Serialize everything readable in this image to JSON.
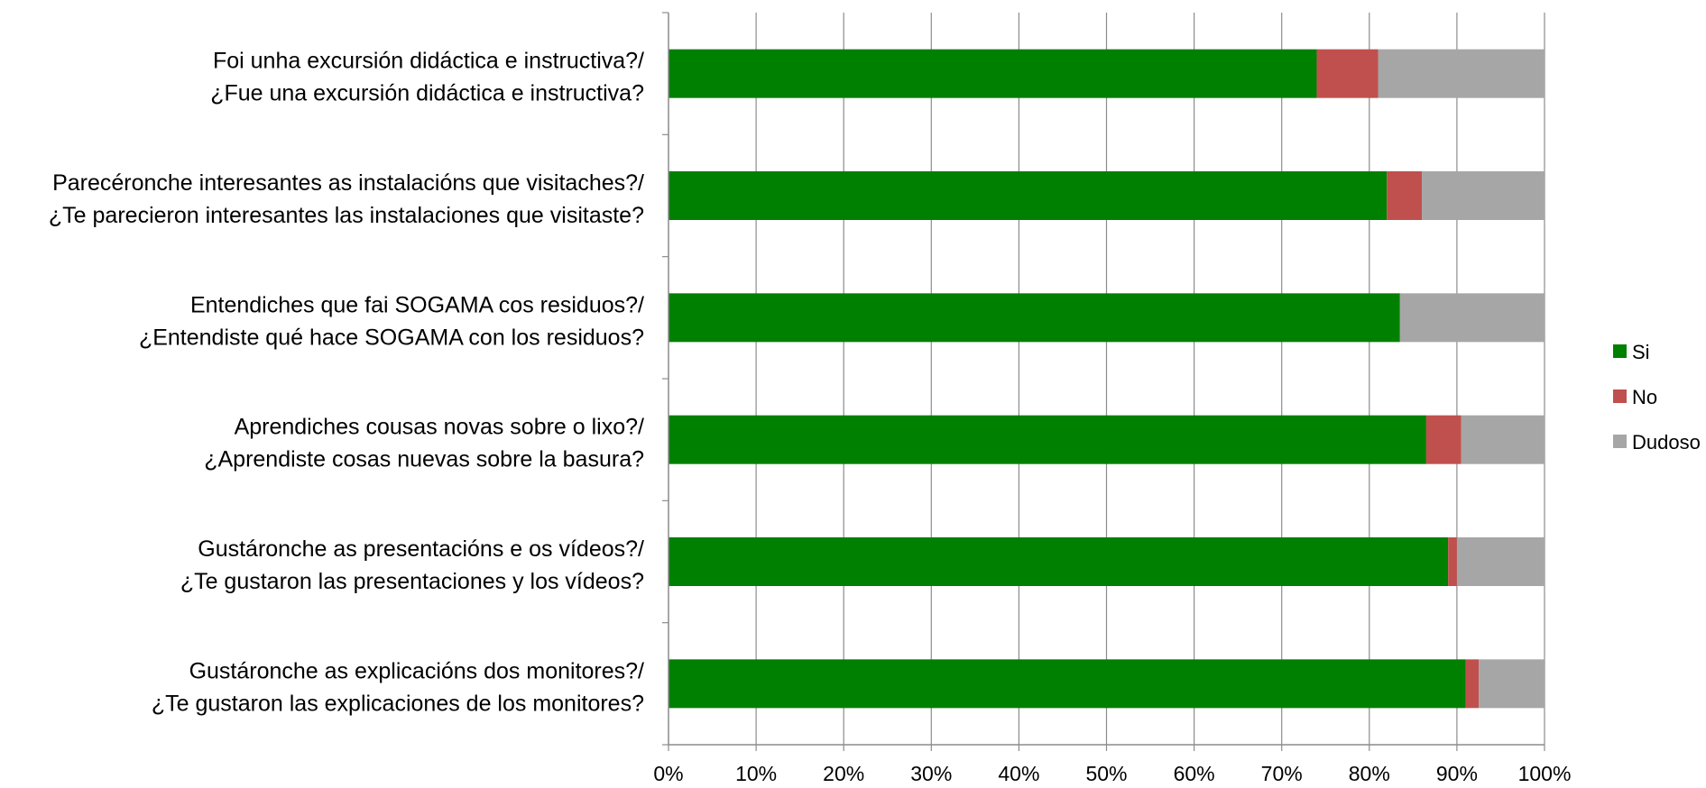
{
  "chart_data": {
    "type": "bar",
    "orientation": "horizontal",
    "stacked": true,
    "percent_scale": true,
    "categories": [
      [
        "Foi unha excursión didáctica e instructiva?/",
        "¿Fue una excursión didáctica e instructiva?"
      ],
      [
        "Parecéronche interesantes as instalacións que visitaches?/",
        "¿Te parecieron interesantes las instalaciones que visitaste?"
      ],
      [
        "Entendiches que fai SOGAMA cos residuos?/",
        "¿Entendiste qué hace SOGAMA con los residuos?"
      ],
      [
        "Aprendiches cousas novas sobre o lixo?/",
        "¿Aprendiste cosas nuevas sobre la basura?"
      ],
      [
        "Gustáronche as presentacións e os vídeos?/",
        "¿Te gustaron las presentaciones y los vídeos?"
      ],
      [
        "Gustáronche as explicacións dos monitores?/",
        "¿Te gustaron las explicaciones de los monitores?"
      ]
    ],
    "series": [
      {
        "name": "Si",
        "color": "#008000",
        "values": [
          74,
          82,
          83.5,
          86.5,
          89,
          91
        ]
      },
      {
        "name": "No",
        "color": "#C0504D",
        "values": [
          7,
          4,
          0,
          4,
          1,
          1.5
        ]
      },
      {
        "name": "Dudoso",
        "color": "#A6A6A6",
        "values": [
          19,
          14,
          16.5,
          9.5,
          10,
          7.5
        ]
      }
    ],
    "xlim": [
      0,
      100
    ],
    "x_ticks": [
      "0%",
      "10%",
      "20%",
      "30%",
      "40%",
      "50%",
      "60%",
      "70%",
      "80%",
      "90%",
      "100%"
    ],
    "grid": true,
    "legend_position": "right"
  }
}
